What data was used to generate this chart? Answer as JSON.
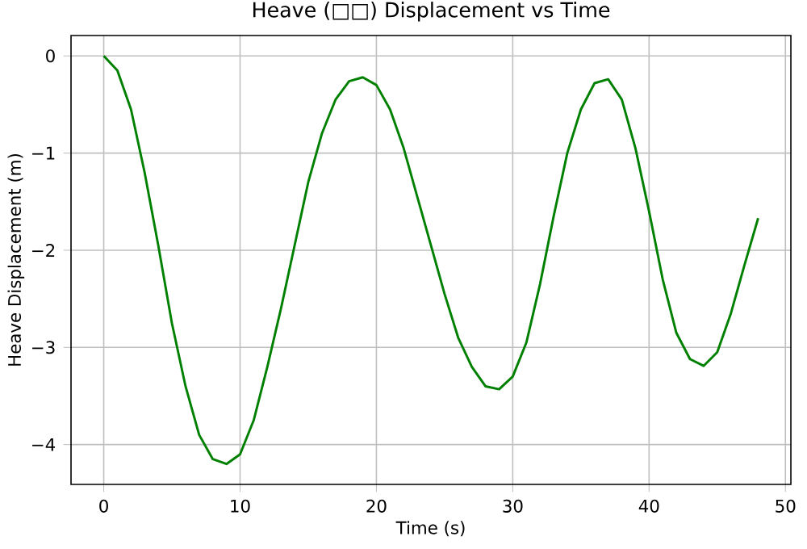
{
  "chart_data": {
    "type": "line",
    "title": "Heave (□□) Displacement vs Time",
    "xlabel": "Time (s)",
    "ylabel": "Heave Displacement (m)",
    "x": [
      0,
      1,
      2,
      3,
      4,
      5,
      6,
      7,
      8,
      9,
      10,
      11,
      12,
      13,
      14,
      15,
      16,
      17,
      18,
      19,
      20,
      21,
      22,
      23,
      24,
      25,
      26,
      27,
      28,
      29,
      30,
      31,
      32,
      33,
      34,
      35,
      36,
      37,
      38,
      39,
      40,
      41,
      42,
      43,
      44,
      45,
      46,
      47,
      48
    ],
    "series": [
      {
        "color": "#008000",
        "values": [
          0,
          -0.15,
          -0.55,
          -1.2,
          -1.95,
          -2.75,
          -3.4,
          -3.9,
          -4.15,
          -4.2,
          -4.1,
          -3.75,
          -3.2,
          -2.6,
          -1.95,
          -1.3,
          -0.8,
          -0.45,
          -0.26,
          -0.22,
          -0.3,
          -0.55,
          -0.95,
          -1.45,
          -1.95,
          -2.45,
          -2.9,
          -3.2,
          -3.4,
          -3.43,
          -3.3,
          -2.95,
          -2.35,
          -1.65,
          -1.0,
          -0.55,
          -0.28,
          -0.24,
          -0.45,
          -0.95,
          -1.6,
          -2.3,
          -2.85,
          -3.12,
          -3.19,
          -3.05,
          -2.65,
          -2.15,
          -1.67
        ]
      }
    ],
    "xlim": [
      -2.4,
      50.4
    ],
    "ylim": [
      -4.41,
      0.21
    ],
    "xticks": [
      0,
      10,
      20,
      30,
      40,
      50
    ],
    "yticks": [
      0,
      {
        "value": -1,
        "label": "−1"
      },
      {
        "value": -2,
        "label": "−2"
      },
      {
        "value": -3,
        "label": "−3"
      },
      {
        "value": -4,
        "label": "−4"
      }
    ],
    "grid": true,
    "line_style": "solid"
  }
}
